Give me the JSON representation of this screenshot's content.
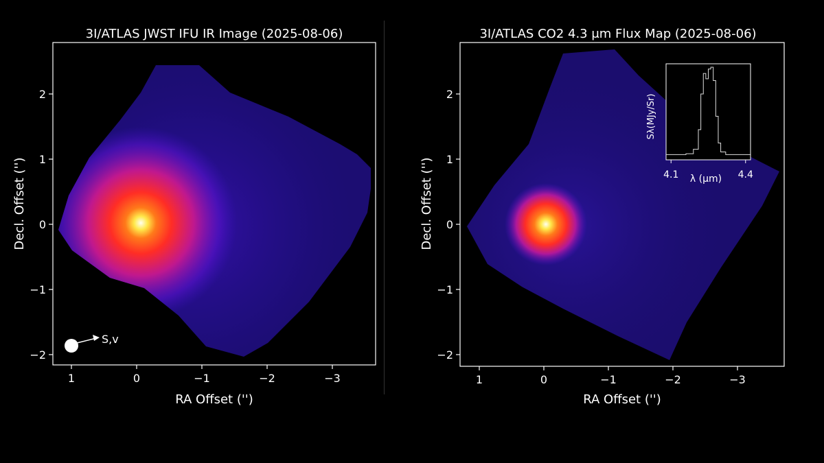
{
  "chart_data": [
    {
      "type": "heatmap",
      "title": "3I/ATLAS JWST IFU IR Image (2025-08-06)",
      "xlabel": "RA Offset ('')",
      "ylabel": "Decl. Offset ('')",
      "xlim": [
        1.3,
        -3.7
      ],
      "ylim": [
        -2.2,
        2.75
      ],
      "xticks": [
        1,
        0,
        -1,
        -2,
        -3
      ],
      "yticks": [
        -2,
        -1,
        0,
        1,
        2
      ],
      "xtick_labels": [
        "1",
        "0",
        "−1",
        "−2",
        "−3"
      ],
      "ytick_labels": [
        "−2",
        "−1",
        "0",
        "1",
        "2"
      ],
      "colormap": "gnuplot2",
      "peak": {
        "x": 0.0,
        "y": 0.0
      },
      "annotation": {
        "text": "S,v",
        "marker": "filled-circle",
        "marker_at": {
          "x": 1.0,
          "y": -1.9
        },
        "arrow_to": {
          "x": 0.55,
          "y": -1.77
        }
      }
    },
    {
      "type": "heatmap",
      "title": "3I/ATLAS CO2 4.3 μm Flux Map (2025-08-06)",
      "xlabel": "RA Offset ('')",
      "ylabel": "Decl. Offset ('')",
      "xlim": [
        1.3,
        -3.7
      ],
      "ylim": [
        -2.2,
        2.75
      ],
      "xticks": [
        1,
        0,
        -1,
        -2,
        -3
      ],
      "yticks": [
        -2,
        -1,
        0,
        1,
        2
      ],
      "xtick_labels": [
        "1",
        "0",
        "−1",
        "−2",
        "−3"
      ],
      "ytick_labels": [
        "−2",
        "−1",
        "0",
        "1",
        "2"
      ],
      "colormap": "gnuplot2",
      "peak": {
        "x": 0.0,
        "y": 0.0
      },
      "inset": {
        "type": "line",
        "xlabel": "λ (μm)",
        "ylabel": "Sλ(MJy/Sr)",
        "xlim": [
          4.08,
          4.42
        ],
        "xticks": [
          4.1,
          4.4
        ],
        "xtick_labels": [
          "4.1",
          "4.4"
        ],
        "x": [
          4.08,
          4.12,
          4.16,
          4.19,
          4.21,
          4.22,
          4.23,
          4.24,
          4.25,
          4.26,
          4.27,
          4.28,
          4.29,
          4.3,
          4.32,
          4.36,
          4.42
        ],
        "y": [
          0.02,
          0.02,
          0.03,
          0.08,
          0.3,
          0.7,
          0.93,
          0.87,
          0.98,
          1.0,
          0.85,
          0.45,
          0.15,
          0.05,
          0.02,
          0.02,
          0.02
        ]
      }
    }
  ]
}
